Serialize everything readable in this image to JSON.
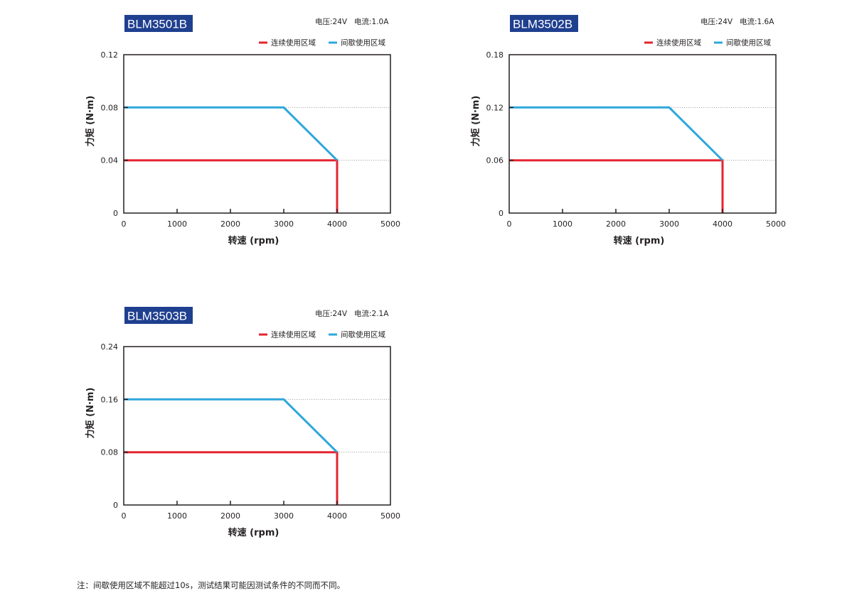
{
  "legend": {
    "continuous": "连续使用区域",
    "intermittent": "间歇使用区域"
  },
  "colors": {
    "continuous": "#e52330",
    "intermittent": "#2ea7dc",
    "title_bg": "#1f3f8f",
    "title_fg": "#ffffff",
    "grid": "#9a9a9a",
    "axis": "#231f20"
  },
  "chart_data": [
    {
      "type": "line",
      "title": "BLM3501B",
      "spec_voltage": "电压:24V",
      "spec_current": "电流:1.0A",
      "xlabel": "转速 (rpm)",
      "ylabel": "力矩 (N·m)",
      "xlim": [
        0,
        5000
      ],
      "ylim": [
        0,
        0.12
      ],
      "xticks": [
        0,
        1000,
        2000,
        3000,
        4000,
        5000
      ],
      "xtick_labels": [
        "0",
        "1000",
        "2000",
        "3000",
        "4000",
        "5000"
      ],
      "yticks": [
        0,
        0.04,
        0.08,
        0.12
      ],
      "ytick_labels": [
        "0",
        "0.04",
        "0.08",
        "0.12"
      ],
      "grid": "horizontal-dotted",
      "legend_position": "top-right",
      "series": [
        {
          "name": "连续使用区域",
          "key": "continuous",
          "points": [
            [
              0,
              0.04
            ],
            [
              4000,
              0.04
            ],
            [
              4000,
              0
            ]
          ]
        },
        {
          "name": "间歇使用区域",
          "key": "intermittent",
          "points": [
            [
              0,
              0.08
            ],
            [
              3000,
              0.08
            ],
            [
              4000,
              0.04
            ]
          ]
        }
      ]
    },
    {
      "type": "line",
      "title": "BLM3502B",
      "spec_voltage": "电压:24V",
      "spec_current": "电流:1.6A",
      "xlabel": "转速 (rpm)",
      "ylabel": "力矩 (N·m)",
      "xlim": [
        0,
        5000
      ],
      "ylim": [
        0,
        0.18
      ],
      "xticks": [
        0,
        1000,
        2000,
        3000,
        4000,
        5000
      ],
      "xtick_labels": [
        "0",
        "1000",
        "2000",
        "3000",
        "4000",
        "5000"
      ],
      "yticks": [
        0,
        0.06,
        0.12,
        0.18
      ],
      "ytick_labels": [
        "0",
        "0.06",
        "0.12",
        "0.18"
      ],
      "grid": "horizontal-dotted",
      "legend_position": "top-right",
      "series": [
        {
          "name": "连续使用区域",
          "key": "continuous",
          "points": [
            [
              0,
              0.06
            ],
            [
              4000,
              0.06
            ],
            [
              4000,
              0
            ]
          ]
        },
        {
          "name": "间歇使用区域",
          "key": "intermittent",
          "points": [
            [
              0,
              0.12
            ],
            [
              3000,
              0.12
            ],
            [
              4000,
              0.06
            ]
          ]
        }
      ]
    },
    {
      "type": "line",
      "title": "BLM3503B",
      "spec_voltage": "电压:24V",
      "spec_current": "电流:2.1A",
      "xlabel": "转速 (rpm)",
      "ylabel": "力矩 (N·m)",
      "xlim": [
        0,
        5000
      ],
      "ylim": [
        0,
        0.24
      ],
      "xticks": [
        0,
        1000,
        2000,
        3000,
        4000,
        5000
      ],
      "xtick_labels": [
        "0",
        "1000",
        "2000",
        "3000",
        "4000",
        "5000"
      ],
      "yticks": [
        0,
        0.08,
        0.16,
        0.24
      ],
      "ytick_labels": [
        "0",
        "0.08",
        "0.16",
        "0.24"
      ],
      "grid": "horizontal-dotted",
      "legend_position": "top-right",
      "series": [
        {
          "name": "连续使用区域",
          "key": "continuous",
          "points": [
            [
              0,
              0.08
            ],
            [
              4000,
              0.08
            ],
            [
              4000,
              0
            ]
          ]
        },
        {
          "name": "间歇使用区域",
          "key": "intermittent",
          "points": [
            [
              0,
              0.16
            ],
            [
              3000,
              0.16
            ],
            [
              4000,
              0.08
            ]
          ]
        }
      ]
    }
  ],
  "footnote": "注：间歇使用区域不能超过10s，测试结果可能因测试条件的不同而不同。"
}
